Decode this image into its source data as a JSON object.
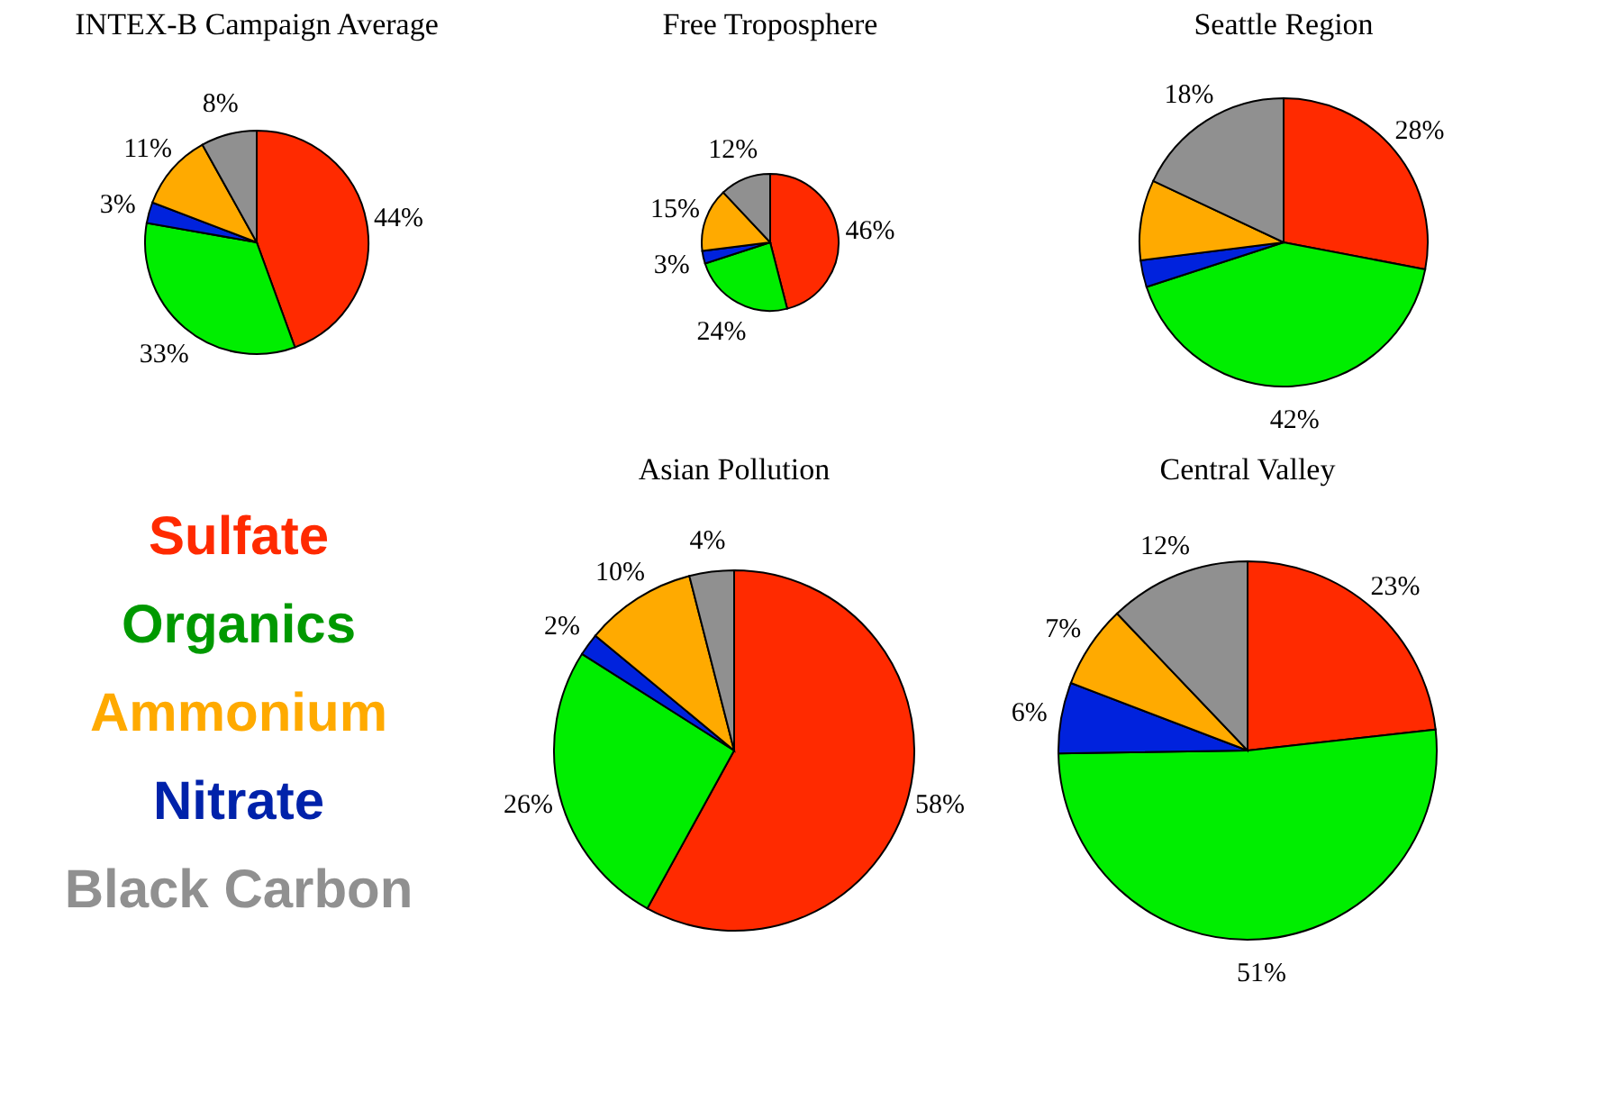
{
  "chart_data": [
    {
      "type": "pie",
      "title": "INTEX-B Campaign Average",
      "categories": [
        null,
        null,
        null,
        null,
        null
      ],
      "values": [
        44,
        33,
        3,
        11,
        8
      ],
      "value_labels": [
        "44%",
        "33%",
        "3%",
        "11%",
        "8%"
      ],
      "colors": [
        "#ff2a00",
        "#00ee00",
        "#0022dd",
        "#ffaa00",
        "#909090"
      ]
    },
    {
      "type": "pie",
      "title": "Free Troposphere",
      "categories": [
        null,
        null,
        null,
        null,
        null
      ],
      "values": [
        46,
        24,
        3,
        15,
        12
      ],
      "value_labels": [
        "46%",
        "24%",
        "3%",
        "15%",
        "12%"
      ],
      "colors": [
        "#ff2a00",
        "#00ee00",
        "#0022dd",
        "#ffaa00",
        "#909090"
      ]
    },
    {
      "type": "pie",
      "title": "Seattle Region",
      "categories": [
        null,
        null,
        null,
        null,
        null
      ],
      "values": [
        28,
        42,
        3,
        9,
        18
      ],
      "value_labels": [
        "28%",
        "42%",
        null,
        null,
        "18%"
      ],
      "colors": [
        "#ff2a00",
        "#00ee00",
        "#0022dd",
        "#ffaa00",
        "#909090"
      ]
    },
    {
      "type": "other",
      "annotations": [
        "Sulfate",
        "Organics",
        "Ammonium",
        "Nitrate",
        "Black Carbon"
      ],
      "colors": [
        "#ff2a00",
        "#009900",
        "#ffaa00",
        "#0022aa",
        "#909090"
      ]
    },
    {
      "type": "pie",
      "title": "Asian Pollution",
      "categories": [
        null,
        null,
        null,
        null,
        null
      ],
      "values": [
        58,
        26,
        2,
        10,
        4
      ],
      "value_labels": [
        "58%",
        "26%",
        "2%",
        "10%",
        "4%"
      ],
      "colors": [
        "#ff2a00",
        "#00ee00",
        "#0022dd",
        "#ffaa00",
        "#909090"
      ]
    },
    {
      "type": "pie",
      "title": "Central Valley",
      "categories": [
        null,
        null,
        null,
        null,
        null
      ],
      "values": [
        23,
        51,
        6,
        7,
        12
      ],
      "value_labels": [
        "23%",
        "51%",
        "6%",
        "7%",
        "12%"
      ],
      "colors": [
        "#ff2a00",
        "#00ee00",
        "#0022dd",
        "#ffaa00",
        "#909090"
      ]
    }
  ]
}
